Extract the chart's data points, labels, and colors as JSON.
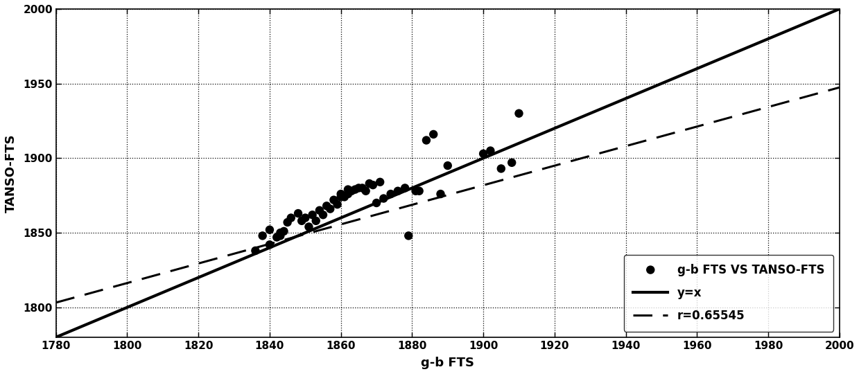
{
  "scatter_x": [
    1838,
    1840,
    1836,
    1842,
    1844,
    1840,
    1843,
    1846,
    1845,
    1843,
    1848,
    1849,
    1850,
    1852,
    1854,
    1851,
    1853,
    1856,
    1858,
    1860,
    1855,
    1857,
    1860,
    1862,
    1859,
    1861,
    1863,
    1865,
    1862,
    1864,
    1866,
    1868,
    1867,
    1869,
    1870,
    1872,
    1871,
    1874,
    1876,
    1878,
    1879,
    1881,
    1882,
    1884,
    1886,
    1888,
    1890,
    1900,
    1902,
    1905,
    1908,
    1910
  ],
  "scatter_y": [
    1848,
    1842,
    1838,
    1847,
    1851,
    1852,
    1848,
    1860,
    1857,
    1850,
    1863,
    1858,
    1860,
    1862,
    1865,
    1854,
    1858,
    1868,
    1872,
    1874,
    1862,
    1866,
    1876,
    1879,
    1869,
    1874,
    1878,
    1880,
    1876,
    1879,
    1880,
    1883,
    1878,
    1882,
    1870,
    1873,
    1884,
    1876,
    1878,
    1880,
    1848,
    1878,
    1878,
    1912,
    1916,
    1876,
    1895,
    1903,
    1905,
    1893,
    1897,
    1930
  ],
  "r_slope": 0.65545,
  "r_intercept": 636.5,
  "xlim": [
    1780,
    2000
  ],
  "ylim": [
    1780,
    2000
  ],
  "xlabel": "g-b FTS",
  "ylabel": "TANSO-FTS",
  "xticks": [
    1780,
    1800,
    1820,
    1840,
    1860,
    1880,
    1900,
    1920,
    1940,
    1960,
    1980,
    2000
  ],
  "yticks": [
    1800,
    1850,
    1900,
    1950,
    2000
  ],
  "legend_scatter": "g-b FTS VS TANSO-FTS",
  "legend_line1": "y=x",
  "legend_line2": "r=0.65545",
  "scatter_color": "#000000",
  "line1_color": "#000000",
  "line2_color": "#000000"
}
